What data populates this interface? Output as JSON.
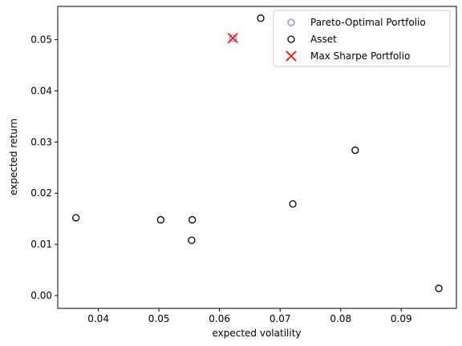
{
  "chart_data": {
    "type": "scatter",
    "title": "",
    "xlabel": "expected volatility",
    "ylabel": "expected return",
    "xlim": [
      0.0333,
      0.0991
    ],
    "ylim": [
      -0.0025,
      0.0565
    ],
    "x_ticks": [
      0.04,
      0.05,
      0.06,
      0.07,
      0.08,
      0.09
    ],
    "x_tick_labels": [
      "0.04",
      "0.05",
      "0.06",
      "0.07",
      "0.08",
      "0.09"
    ],
    "y_ticks": [
      0.0,
      0.01,
      0.02,
      0.03,
      0.04,
      0.05
    ],
    "y_tick_labels": [
      "0.00",
      "0.01",
      "0.02",
      "0.03",
      "0.04",
      "0.05"
    ],
    "grid": false,
    "legend_position": "top-right",
    "series": [
      {
        "name": "Pareto-Optimal Portfolio",
        "marker": "hollow-circle",
        "color": "#8080ff",
        "points": [
          [
            0.0622,
            0.0503
          ]
        ]
      },
      {
        "name": "Asset",
        "marker": "hollow-circle",
        "color": "#000000",
        "points": [
          [
            0.0363,
            0.0152
          ],
          [
            0.0503,
            0.0148
          ],
          [
            0.0555,
            0.0148
          ],
          [
            0.0554,
            0.0108
          ],
          [
            0.0668,
            0.0542
          ],
          [
            0.0721,
            0.0179
          ],
          [
            0.0824,
            0.0284
          ],
          [
            0.0962,
            0.0014
          ]
        ]
      },
      {
        "name": "Max Sharpe Portfolio",
        "marker": "x",
        "color": "#ff0000",
        "points": [
          [
            0.0622,
            0.0503
          ]
        ]
      }
    ]
  }
}
